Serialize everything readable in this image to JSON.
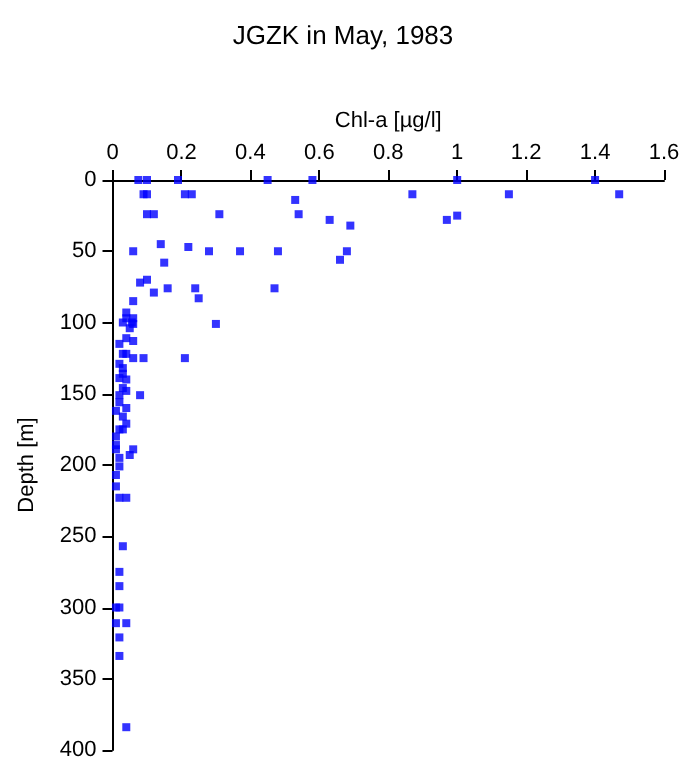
{
  "chart_data": {
    "type": "scatter",
    "title": "JGZK in May, 1983",
    "xlabel": "Chl-a [µg/l]",
    "ylabel": "Depth [m]",
    "marker": "square",
    "grid": false,
    "xlim": [
      0,
      1.6
    ],
    "xticks": [
      0,
      0.2,
      0.4,
      0.6,
      0.8,
      1,
      1.2,
      1.4,
      1.6
    ],
    "ylim": [
      400,
      0
    ],
    "yticks": [
      0,
      50,
      100,
      150,
      200,
      250,
      300,
      350,
      400
    ],
    "series": [
      {
        "color": "#0000ff",
        "x": [
          0.075,
          0.1,
          0.19,
          0.45,
          0.58,
          1.0,
          1.4,
          0.09,
          0.1,
          0.21,
          0.23,
          0.53,
          0.87,
          1.15,
          1.47,
          0.1,
          0.12,
          0.31,
          0.54,
          0.63,
          0.97,
          1.0,
          0.69,
          0.06,
          0.14,
          0.22,
          0.28,
          0.37,
          0.48,
          0.68,
          0.66,
          0.15,
          0.08,
          0.1,
          0.16,
          0.24,
          0.47,
          0.12,
          0.25,
          0.06,
          0.3,
          0.06,
          0.04,
          0.04,
          0.06,
          0.03,
          0.056,
          0.05,
          0.04,
          0.06,
          0.02,
          0.03,
          0.04,
          0.06,
          0.09,
          0.21,
          0.02,
          0.03,
          0.03,
          0.02,
          0.04,
          0.03,
          0.04,
          0.02,
          0.08,
          0.02,
          0.04,
          0.01,
          0.03,
          0.04,
          0.02,
          0.03,
          0.01,
          0.01,
          0.01,
          0.06,
          0.05,
          0.02,
          0.02,
          0.01,
          0.01,
          0.02,
          0.04,
          0.03,
          0.02,
          0.02,
          0.01,
          0.02,
          0.01,
          0.04,
          0.02,
          0.02,
          0.04
        ],
        "values": [
          0,
          0,
          0,
          0,
          0,
          0,
          0,
          10,
          10,
          10,
          10,
          14,
          10,
          10,
          10,
          24,
          24,
          24,
          24,
          28,
          28,
          25,
          32,
          50,
          45,
          47,
          50,
          50,
          50,
          50,
          56,
          58,
          72,
          70,
          76,
          76,
          76,
          79,
          83,
          85,
          101,
          101,
          93,
          97,
          97,
          100,
          100,
          104,
          111,
          113,
          115,
          122,
          122,
          125,
          125,
          125,
          129,
          132,
          136,
          139,
          140,
          146,
          148,
          151,
          151,
          156,
          160,
          162,
          166,
          171,
          175,
          175,
          180,
          186,
          189,
          189,
          193,
          195,
          201,
          207,
          215,
          223,
          223,
          257,
          275,
          285,
          300,
          300,
          311,
          311,
          321,
          334,
          384
        ]
      }
    ]
  }
}
